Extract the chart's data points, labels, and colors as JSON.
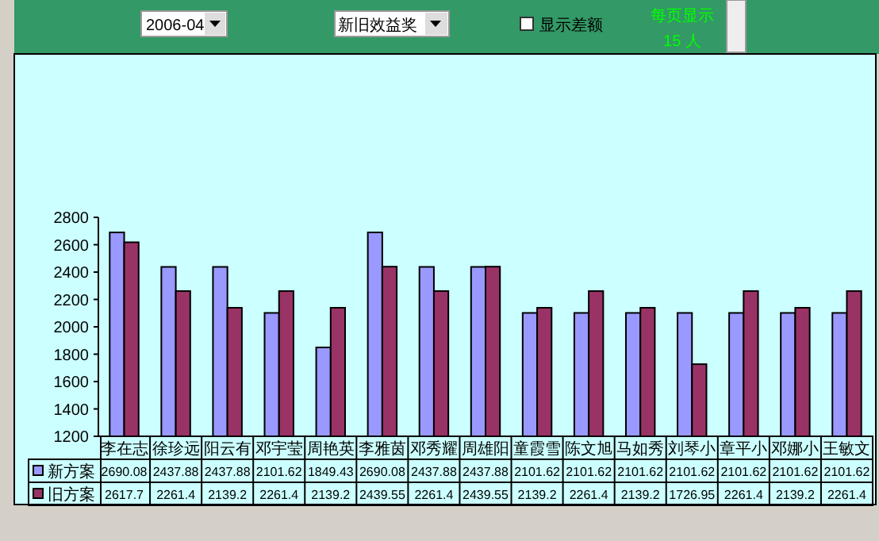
{
  "chart_data": {
    "type": "bar",
    "categories": [
      "李在志",
      "徐珍远",
      "阳云有",
      "邓宇莹",
      "周艳英",
      "李雅茵",
      "邓秀耀",
      "周雄阳",
      "童霞雪",
      "陈文旭",
      "马如秀",
      "刘琴小",
      "章平小",
      "邓娜小",
      "王敏文"
    ],
    "series": [
      {
        "name": "新方案",
        "color": "#9999ff",
        "values": [
          2690.08,
          2437.88,
          2437.88,
          2101.62,
          1849.43,
          2690.08,
          2437.88,
          2437.88,
          2101.62,
          2101.62,
          2101.62,
          2101.62,
          2101.62,
          2101.62,
          2101.62
        ]
      },
      {
        "name": "旧方案",
        "color": "#993366",
        "values": [
          2617.7,
          2261.4,
          2139.2,
          2261.4,
          2139.2,
          2439.55,
          2261.4,
          2439.55,
          2139.2,
          2261.4,
          2139.2,
          1726.95,
          2261.4,
          2139.2,
          2261.4
        ]
      }
    ],
    "legend": "bottom left",
    "ylim": [
      1200,
      2800
    ],
    "yticks": [
      1200,
      1400,
      1600,
      1800,
      2000,
      2200,
      2400,
      2600,
      2800
    ],
    "data_labels": true,
    "annotations": [
      "2006-04",
      "新旧效益奖",
      "显示差额",
      "每页显示",
      "15 人"
    ]
  }
}
